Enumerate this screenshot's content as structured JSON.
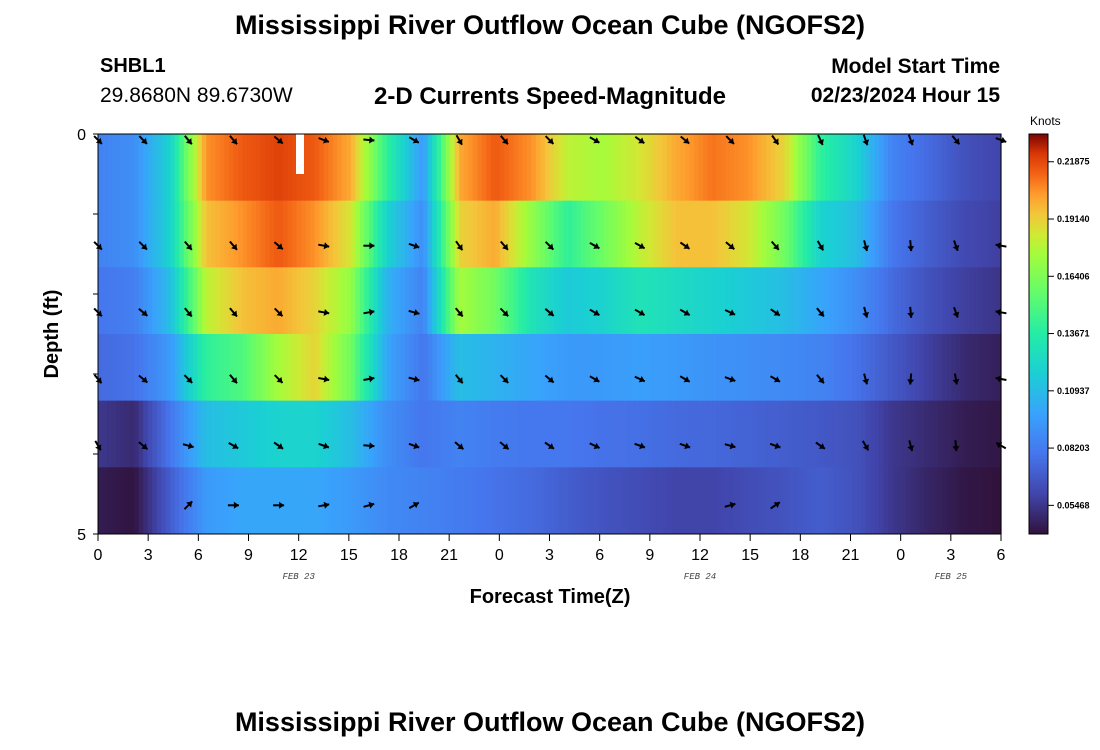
{
  "header": {
    "title": "Mississippi River Outflow Ocean Cube (NGOFS2)",
    "station": "SHBL1",
    "coords": "29.8680N  89.6730W",
    "subtitle": "2-D Currents Speed-Magnitude",
    "model_start_label": "Model Start Time",
    "model_start_value": "02/23/2024 Hour 15"
  },
  "second_panel": {
    "title": "Mississippi River Outflow Ocean Cube (NGOFS2)"
  },
  "chart_data": {
    "type": "heatmap",
    "title": "2-D Currents Speed-Magnitude",
    "xlabel": "Forecast Time(Z)",
    "ylabel": "Depth (ft)",
    "x_ticks": [
      "0",
      "3",
      "6",
      "9",
      "12",
      "15",
      "18",
      "21",
      "0",
      "3",
      "6",
      "9",
      "12",
      "15",
      "18",
      "21",
      "0",
      "3",
      "6"
    ],
    "date_labels": [
      {
        "label": "FEB 23",
        "at_hour": 12
      },
      {
        "label": "FEB 24",
        "at_hour": 36
      },
      {
        "label": "FEB 25",
        "at_hour": 51
      }
    ],
    "x_range_hours": [
      0,
      54
    ],
    "y_ticks": [
      "0",
      "5"
    ],
    "depth_range_ft": [
      0,
      5
    ],
    "colorbar": {
      "title": "Knots",
      "tick_labels": [
        "0.21875",
        "0.19140",
        "0.16406",
        "0.13671",
        "0.10937",
        "0.08203",
        "0.05468"
      ],
      "range": [
        0.041,
        0.232
      ]
    },
    "layer_speeds_knots": [
      [
        0.085,
        0.09,
        0.12,
        0.205,
        0.215,
        0.22,
        0.215,
        0.2,
        0.14,
        0.095,
        0.2,
        0.215,
        0.205,
        0.18,
        0.175,
        0.185,
        0.2,
        0.21,
        0.205,
        0.19,
        0.14,
        0.12,
        0.085,
        0.075,
        0.065,
        0.06
      ],
      [
        0.085,
        0.09,
        0.12,
        0.195,
        0.205,
        0.215,
        0.205,
        0.185,
        0.12,
        0.09,
        0.19,
        0.2,
        0.17,
        0.14,
        0.16,
        0.18,
        0.195,
        0.195,
        0.185,
        0.16,
        0.12,
        0.11,
        0.08,
        0.07,
        0.062,
        0.058
      ],
      [
        0.08,
        0.083,
        0.11,
        0.18,
        0.195,
        0.2,
        0.19,
        0.17,
        0.105,
        0.085,
        0.175,
        0.16,
        0.13,
        0.115,
        0.12,
        0.13,
        0.125,
        0.12,
        0.115,
        0.11,
        0.1,
        0.09,
        0.075,
        0.065,
        0.058,
        0.054
      ],
      [
        0.075,
        0.078,
        0.095,
        0.14,
        0.15,
        0.175,
        0.19,
        0.16,
        0.1,
        0.08,
        0.11,
        0.105,
        0.1,
        0.095,
        0.095,
        0.097,
        0.095,
        0.092,
        0.09,
        0.088,
        0.085,
        0.078,
        0.068,
        0.058,
        0.05,
        0.046
      ],
      [
        0.055,
        0.05,
        0.08,
        0.11,
        0.115,
        0.12,
        0.12,
        0.11,
        0.09,
        0.08,
        0.085,
        0.082,
        0.08,
        0.08,
        0.078,
        0.077,
        0.075,
        0.074,
        0.072,
        0.07,
        0.068,
        0.065,
        0.055,
        0.05,
        0.045,
        0.043
      ],
      [
        0.045,
        0.042,
        0.07,
        0.095,
        0.1,
        0.1,
        0.1,
        0.095,
        0.088,
        0.085,
        0.082,
        0.078,
        0.075,
        0.07,
        0.066,
        0.063,
        0.06,
        0.06,
        0.063,
        0.066,
        0.07,
        0.065,
        0.055,
        0.048,
        0.043,
        0.041
      ]
    ],
    "current_directions_deg": [
      [
        135,
        135,
        140,
        140,
        130,
        110,
        95,
        120,
        150,
        140,
        135,
        120,
        125,
        130,
        135,
        145,
        155,
        160,
        160,
        140,
        110
      ],
      [
        135,
        135,
        140,
        140,
        130,
        100,
        90,
        110,
        145,
        140,
        135,
        120,
        120,
        125,
        130,
        140,
        150,
        165,
        175,
        160,
        280
      ],
      [
        135,
        130,
        140,
        140,
        135,
        100,
        80,
        105,
        140,
        135,
        130,
        120,
        120,
        120,
        115,
        125,
        140,
        165,
        175,
        160,
        280
      ],
      [
        140,
        130,
        135,
        140,
        135,
        100,
        80,
        105,
        140,
        135,
        130,
        120,
        115,
        120,
        110,
        120,
        140,
        165,
        185,
        170,
        280
      ],
      [
        150,
        130,
        105,
        120,
        125,
        110,
        95,
        110,
        130,
        130,
        125,
        115,
        110,
        110,
        105,
        110,
        125,
        150,
        165,
        175,
        300
      ],
      [
        null,
        null,
        45,
        90,
        90,
        80,
        75,
        60,
        null,
        null,
        null,
        null,
        null,
        null,
        75,
        55,
        null,
        null,
        null,
        null,
        null
      ]
    ]
  }
}
